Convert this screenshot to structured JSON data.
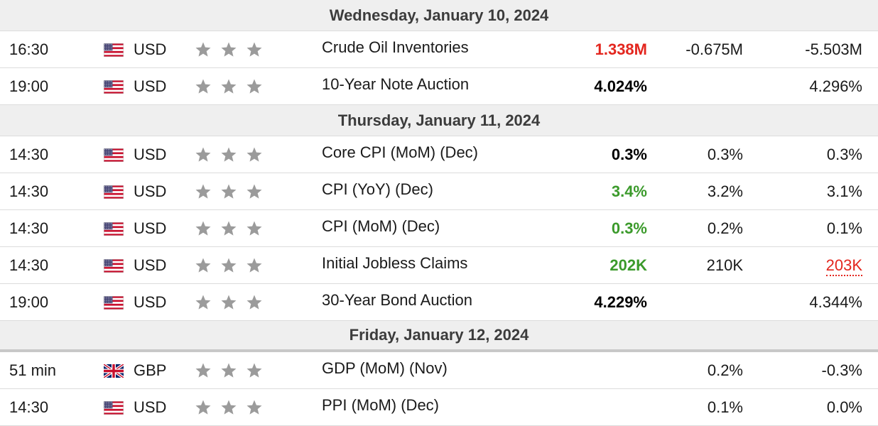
{
  "colors": {
    "negative": "#e3261e",
    "positive": "#3b9a2b",
    "neutral": "#000000",
    "star": "#9b9b9b"
  },
  "days": [
    {
      "label": "Wednesday, January 10, 2024",
      "events": [
        {
          "time": "16:30",
          "flag": "us-flag-icon",
          "currency": "USD",
          "importance": 3,
          "event": "Crude Oil Inventories",
          "actual": "1.338M",
          "actual_status": "neg",
          "forecast": "-0.675M",
          "previous": "-5.503M",
          "previous_revised": false
        },
        {
          "time": "19:00",
          "flag": "us-flag-icon",
          "currency": "USD",
          "importance": 3,
          "event": "10-Year Note Auction",
          "actual": "4.024%",
          "actual_status": "neu",
          "forecast": "",
          "previous": "4.296%",
          "previous_revised": false
        }
      ]
    },
    {
      "label": "Thursday, January 11, 2024",
      "events": [
        {
          "time": "14:30",
          "flag": "us-flag-icon",
          "currency": "USD",
          "importance": 3,
          "event": "Core CPI (MoM) (Dec)",
          "actual": "0.3%",
          "actual_status": "neu",
          "forecast": "0.3%",
          "previous": "0.3%",
          "previous_revised": false
        },
        {
          "time": "14:30",
          "flag": "us-flag-icon",
          "currency": "USD",
          "importance": 3,
          "event": "CPI (YoY) (Dec)",
          "actual": "3.4%",
          "actual_status": "pos",
          "forecast": "3.2%",
          "previous": "3.1%",
          "previous_revised": false
        },
        {
          "time": "14:30",
          "flag": "us-flag-icon",
          "currency": "USD",
          "importance": 3,
          "event": "CPI (MoM) (Dec)",
          "actual": "0.3%",
          "actual_status": "pos",
          "forecast": "0.2%",
          "previous": "0.1%",
          "previous_revised": false
        },
        {
          "time": "14:30",
          "flag": "us-flag-icon",
          "currency": "USD",
          "importance": 3,
          "event": "Initial Jobless Claims",
          "actual": "202K",
          "actual_status": "pos",
          "forecast": "210K",
          "previous": "203K",
          "previous_revised": true
        },
        {
          "time": "19:00",
          "flag": "us-flag-icon",
          "currency": "USD",
          "importance": 3,
          "event": "30-Year Bond Auction",
          "actual": "4.229%",
          "actual_status": "neu",
          "forecast": "",
          "previous": "4.344%",
          "previous_revised": false
        }
      ]
    },
    {
      "label": "Friday, January 12, 2024",
      "events": [
        {
          "time": "51 min",
          "flag": "uk-flag-icon",
          "currency": "GBP",
          "importance": 3,
          "event": "GDP (MoM) (Nov)",
          "actual": "",
          "actual_status": "neu",
          "forecast": "0.2%",
          "previous": "-0.3%",
          "previous_revised": false
        },
        {
          "time": "14:30",
          "flag": "us-flag-icon",
          "currency": "USD",
          "importance": 3,
          "event": "PPI (MoM) (Dec)",
          "actual": "",
          "actual_status": "neu",
          "forecast": "0.1%",
          "previous": "0.0%",
          "previous_revised": false
        }
      ]
    }
  ]
}
